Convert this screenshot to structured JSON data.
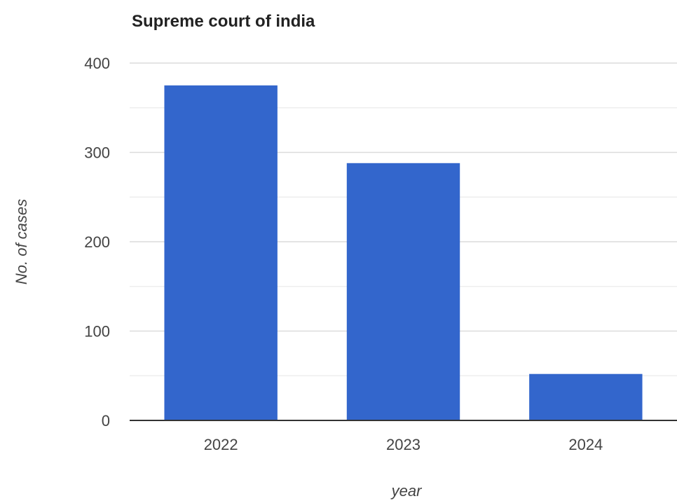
{
  "chart_data": {
    "type": "bar",
    "title": "Supreme court of india",
    "xlabel": "year",
    "ylabel": "No. of cases",
    "categories": [
      "2022",
      "2023",
      "2024"
    ],
    "values": [
      375,
      288,
      52
    ],
    "ylim": [
      0,
      400
    ],
    "yticks": [
      "0",
      "100",
      "200",
      "300",
      "400"
    ],
    "grid": true,
    "legend": "none",
    "bar_color": "#3366cc"
  }
}
